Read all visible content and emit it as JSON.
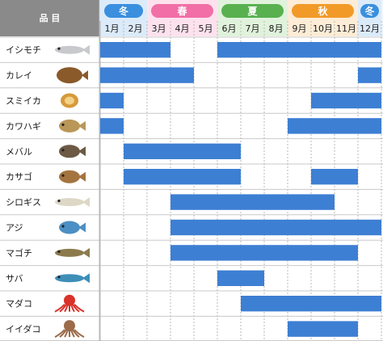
{
  "chart_data": {
    "type": "table",
    "header_label": "品 目",
    "seasons": [
      {
        "label": "冬",
        "start": 1,
        "end": 2,
        "color": "#3a8fde"
      },
      {
        "label": "春",
        "start": 3,
        "end": 5,
        "color": "#f16fa6"
      },
      {
        "label": "夏",
        "start": 6,
        "end": 8,
        "color": "#58b14e"
      },
      {
        "label": "秋",
        "start": 9,
        "end": 11,
        "color": "#f29a28"
      },
      {
        "label": "冬",
        "start": 12,
        "end": 12,
        "color": "#3a8fde"
      }
    ],
    "months": [
      "1月",
      "2月",
      "3月",
      "4月",
      "5月",
      "6月",
      "7月",
      "8月",
      "9月",
      "10月",
      "11月",
      "12月"
    ],
    "bar_color": "#3d7fd3",
    "fish": [
      {
        "name": "イシモチ",
        "icon": "fish-croaker-icon",
        "ranges": [
          [
            1,
            3
          ],
          [
            6,
            12
          ]
        ]
      },
      {
        "name": "カレイ",
        "icon": "fish-flounder-icon",
        "ranges": [
          [
            1,
            4
          ],
          [
            12,
            12
          ]
        ]
      },
      {
        "name": "スミイカ",
        "icon": "cuttlefish-icon",
        "ranges": [
          [
            1,
            1
          ],
          [
            10,
            12
          ]
        ]
      },
      {
        "name": "カワハギ",
        "icon": "fish-filefish-icon",
        "ranges": [
          [
            1,
            1
          ],
          [
            9,
            12
          ]
        ]
      },
      {
        "name": "メバル",
        "icon": "fish-rockfish-icon",
        "ranges": [
          [
            2,
            6
          ]
        ]
      },
      {
        "name": "カサゴ",
        "icon": "fish-scorpionfish-icon",
        "ranges": [
          [
            2,
            6
          ],
          [
            10,
            11
          ]
        ]
      },
      {
        "name": "シロギス",
        "icon": "fish-whiting-icon",
        "ranges": [
          [
            4,
            10
          ]
        ]
      },
      {
        "name": "アジ",
        "icon": "fish-horse-mackerel-icon",
        "ranges": [
          [
            4,
            12
          ]
        ]
      },
      {
        "name": "マゴチ",
        "icon": "fish-flathead-icon",
        "ranges": [
          [
            4,
            11
          ]
        ]
      },
      {
        "name": "サバ",
        "icon": "fish-mackerel-icon",
        "ranges": [
          [
            6,
            7
          ]
        ]
      },
      {
        "name": "マダコ",
        "icon": "octopus-icon",
        "ranges": [
          [
            7,
            12
          ]
        ]
      },
      {
        "name": "イイダコ",
        "icon": "small-octopus-icon",
        "ranges": [
          [
            9,
            11
          ]
        ]
      }
    ]
  }
}
